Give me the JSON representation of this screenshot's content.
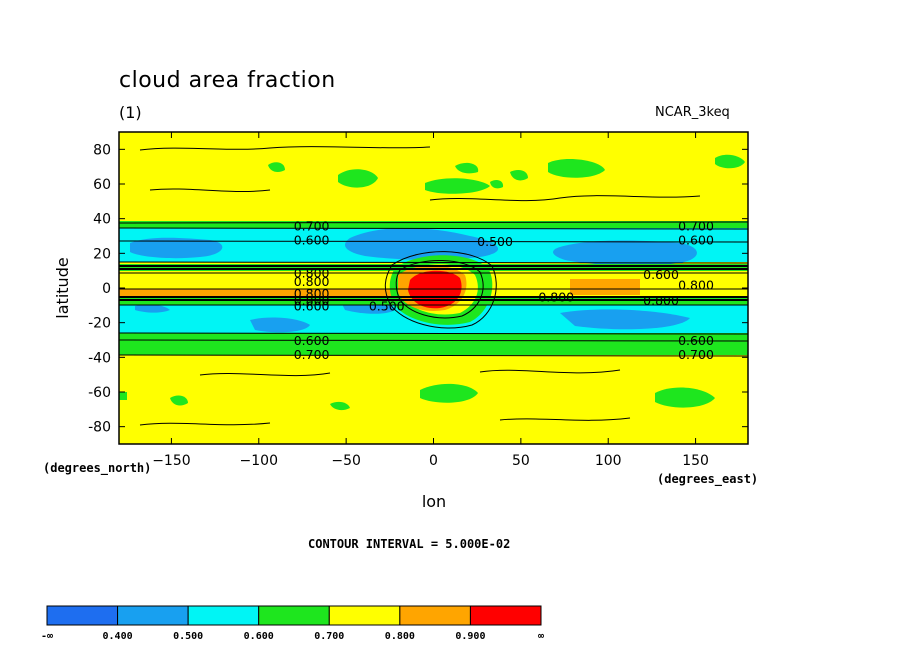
{
  "title": "cloud area fraction",
  "subtitle": "(1)",
  "dataset": "NCAR_3keq",
  "contour_interval": "CONTOUR INTERVAL = 5.000E-02",
  "chart_data": {
    "type": "heatmap",
    "title": "cloud area fraction",
    "xlabel": "lon",
    "ylabel": "latitude",
    "x_units": "(degrees_east)",
    "y_units": "(degrees_north)",
    "xlim": [
      -180,
      180
    ],
    "ylim": [
      -90,
      90
    ],
    "x_ticks": [
      -150,
      -100,
      -50,
      0,
      50,
      100,
      150
    ],
    "y_ticks": [
      80,
      60,
      40,
      20,
      0,
      -20,
      -40,
      -60,
      -80
    ],
    "contour_interval": 0.05,
    "colorbar": {
      "bins": [
        {
          "from": "-∞",
          "to": "0.400",
          "color": "#1e6ef0"
        },
        {
          "from": "0.400",
          "to": "0.500",
          "color": "#18a0f0"
        },
        {
          "from": "0.500",
          "to": "0.600",
          "color": "#00f5f5"
        },
        {
          "from": "0.600",
          "to": "0.700",
          "color": "#1ee61e"
        },
        {
          "from": "0.700",
          "to": "0.800",
          "color": "#ffff00"
        },
        {
          "from": "0.800",
          "to": "0.900",
          "color": "#ffa500"
        },
        {
          "from": "0.900",
          "to": "∞",
          "color": "#ff0000"
        }
      ],
      "tick_labels": [
        "-∞",
        "0.400",
        "0.500",
        "0.600",
        "0.700",
        "0.800",
        "0.900",
        "∞"
      ]
    },
    "contour_labels": [
      {
        "text": "0.700",
        "lon": -80,
        "lat": 36
      },
      {
        "text": "0.600",
        "lon": -80,
        "lat": 28
      },
      {
        "text": "0.700",
        "lon": 140,
        "lat": 36
      },
      {
        "text": "0.600",
        "lon": 140,
        "lat": 28
      },
      {
        "text": "0.500",
        "lon": 25,
        "lat": 27
      },
      {
        "text": "0.800",
        "lon": -80,
        "lat": 9
      },
      {
        "text": "0.800",
        "lon": -80,
        "lat": 4
      },
      {
        "text": "0.800",
        "lon": -80,
        "lat": -3
      },
      {
        "text": "0.800",
        "lon": -80,
        "lat": -7
      },
      {
        "text": "0.600",
        "lon": -80,
        "lat": -10
      },
      {
        "text": "0.600",
        "lon": 120,
        "lat": 8
      },
      {
        "text": "0.800",
        "lon": 140,
        "lat": 2
      },
      {
        "text": "0.800",
        "lon": 120,
        "lat": -7
      },
      {
        "text": "0.800",
        "lon": 60,
        "lat": -5
      },
      {
        "text": "0.500",
        "lon": -37,
        "lat": -10
      },
      {
        "text": "0.600",
        "lon": -80,
        "lat": -30
      },
      {
        "text": "0.700",
        "lon": -80,
        "lat": -38
      },
      {
        "text": "0.600",
        "lon": 140,
        "lat": -30
      },
      {
        "text": "0.700",
        "lon": 140,
        "lat": -38
      }
    ],
    "zonal_bands": [
      {
        "lat_from": 90,
        "lat_to": 37,
        "value": 0.75
      },
      {
        "lat_from": 37,
        "lat_to": 33,
        "value": 0.65
      },
      {
        "lat_from": 33,
        "lat_to": 10,
        "value": 0.55
      },
      {
        "lat_from": 10,
        "lat_to": 6,
        "value": 0.65
      },
      {
        "lat_from": 6,
        "lat_to": -5,
        "value": 0.75
      },
      {
        "lat_from": -5,
        "lat_to": -9,
        "value": 0.65
      },
      {
        "lat_from": -9,
        "lat_to": -30,
        "value": 0.55
      },
      {
        "lat_from": -30,
        "lat_to": -36,
        "value": 0.65
      },
      {
        "lat_from": -36,
        "lat_to": -90,
        "value": 0.75
      }
    ],
    "features": [
      {
        "kind": "max",
        "lon": 5,
        "lat": -5,
        "value": 0.95,
        "note": "equatorial maximum"
      },
      {
        "kind": "min",
        "lon": 0,
        "lat": 22,
        "value": 0.45
      },
      {
        "kind": "min",
        "lon": 110,
        "lat": 20,
        "value": 0.45
      },
      {
        "kind": "min",
        "lon": -130,
        "lat": 18,
        "value": 0.45
      },
      {
        "kind": "min",
        "lon": -100,
        "lat": -20,
        "value": 0.45
      },
      {
        "kind": "min",
        "lon": 120,
        "lat": -22,
        "value": 0.45
      },
      {
        "kind": "max",
        "lon": 105,
        "lat": 0,
        "value": 0.85
      }
    ]
  }
}
